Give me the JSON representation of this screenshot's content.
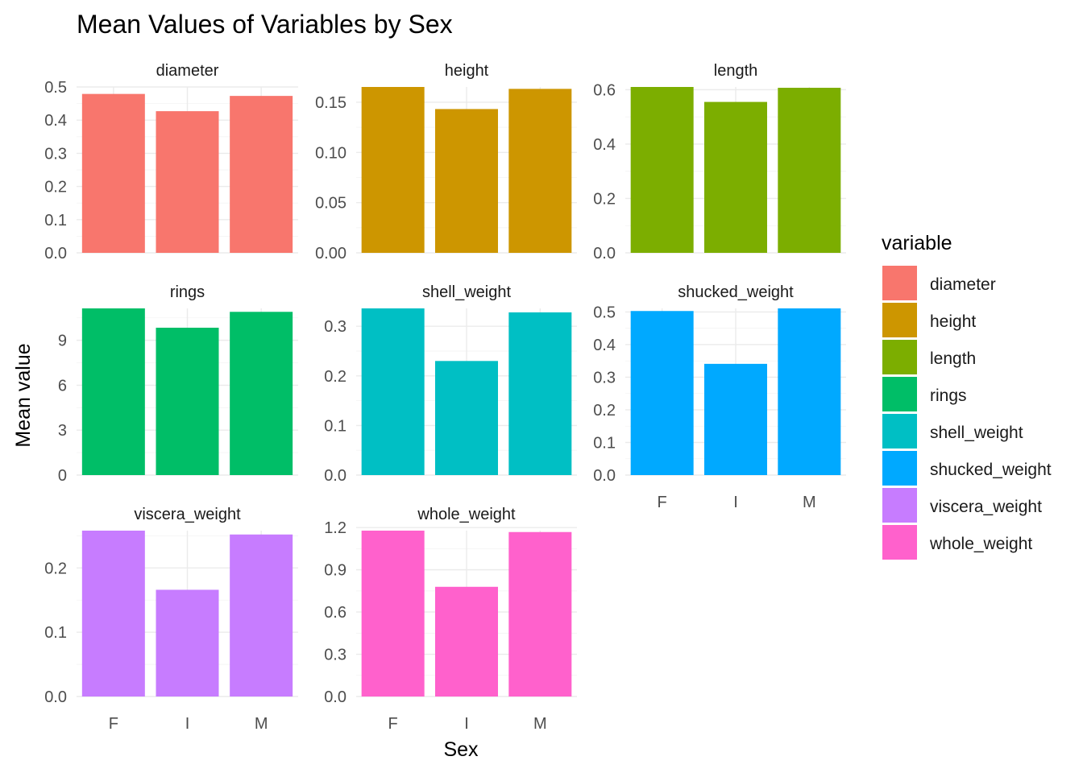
{
  "chart_data": {
    "type": "bar",
    "title": "Mean Values of Variables by Sex",
    "xlabel": "Sex",
    "ylabel": "Mean value",
    "categories": [
      "F",
      "I",
      "M"
    ],
    "facet_scales": "free_y",
    "legend": {
      "title": "variable",
      "position": "right"
    },
    "grid": true,
    "panels": [
      {
        "name": "diameter",
        "color": "#F8766D",
        "values": [
          0.479,
          0.427,
          0.473
        ],
        "ylim": [
          0,
          0.5
        ],
        "ticks": [
          0.0,
          0.1,
          0.2,
          0.3,
          0.4,
          0.5
        ],
        "tick_labels": [
          "0.0",
          "0.1",
          "0.2",
          "0.3",
          "0.4",
          "0.5"
        ]
      },
      {
        "name": "height",
        "color": "#CD9600",
        "values": [
          0.1652,
          0.1432,
          0.1633
        ],
        "ylim": [
          0,
          0.1652
        ],
        "ticks": [
          0.0,
          0.05,
          0.1,
          0.15
        ],
        "tick_labels": [
          "0.00",
          "0.05",
          "0.10",
          "0.15"
        ]
      },
      {
        "name": "length",
        "color": "#7CAE00",
        "values": [
          0.61,
          0.555,
          0.607
        ],
        "ylim": [
          0,
          0.61
        ],
        "ticks": [
          0.0,
          0.2,
          0.4,
          0.6
        ],
        "tick_labels": [
          "0.0",
          "0.2",
          "0.4",
          "0.6"
        ]
      },
      {
        "name": "rings",
        "color": "#00BE67",
        "values": [
          11.13,
          9.84,
          10.9
        ],
        "ylim": [
          0,
          11.13
        ],
        "ticks": [
          0,
          3,
          6,
          9
        ],
        "tick_labels": [
          "0",
          "3",
          "6",
          "9"
        ]
      },
      {
        "name": "shell_weight",
        "color": "#00BFC4",
        "values": [
          0.336,
          0.23,
          0.328
        ],
        "ylim": [
          0,
          0.336
        ],
        "ticks": [
          0.0,
          0.1,
          0.2,
          0.3
        ],
        "tick_labels": [
          "0.0",
          "0.1",
          "0.2",
          "0.3"
        ]
      },
      {
        "name": "shucked_weight",
        "color": "#00A9FF",
        "values": [
          0.503,
          0.341,
          0.511
        ],
        "ylim": [
          0,
          0.511
        ],
        "ticks": [
          0.0,
          0.1,
          0.2,
          0.3,
          0.4,
          0.5
        ],
        "tick_labels": [
          "0.0",
          "0.1",
          "0.2",
          "0.3",
          "0.4",
          "0.5"
        ]
      },
      {
        "name": "viscera_weight",
        "color": "#C77CFF",
        "values": [
          0.258,
          0.166,
          0.252
        ],
        "ylim": [
          0,
          0.258
        ],
        "ticks": [
          0.0,
          0.1,
          0.2
        ],
        "tick_labels": [
          "0.0",
          "0.1",
          "0.2"
        ]
      },
      {
        "name": "whole_weight",
        "color": "#FF61CC",
        "values": [
          1.178,
          0.779,
          1.168
        ],
        "ylim": [
          0,
          1.178
        ],
        "ticks": [
          0.0,
          0.3,
          0.6,
          0.9,
          1.2
        ],
        "tick_labels": [
          "0.0",
          "0.3",
          "0.6",
          "0.9",
          "1.2"
        ]
      }
    ]
  }
}
